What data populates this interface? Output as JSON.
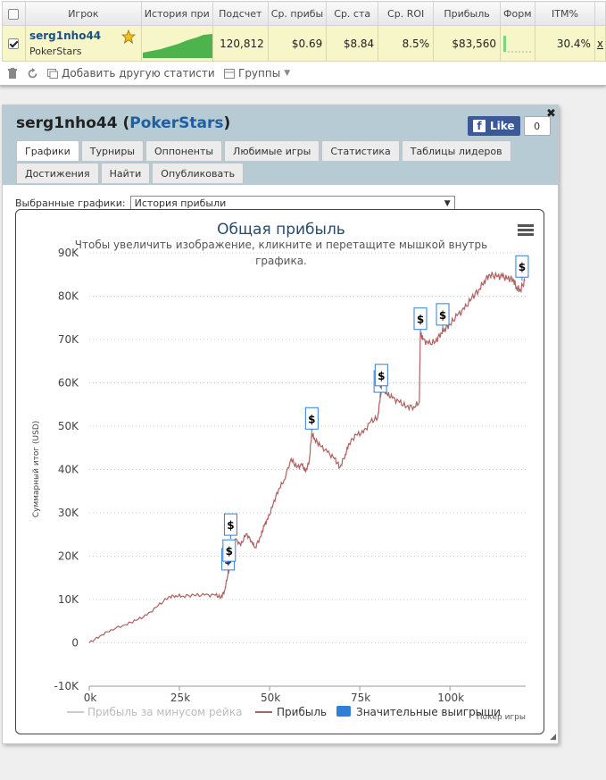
{
  "table": {
    "headers": [
      "Игрок",
      "История при",
      "Подсчет",
      "Ср. прибы",
      "Ср. ста",
      "Ср. ROI",
      "Прибыль",
      "Форм",
      "ITM%"
    ],
    "row": {
      "player": "serg1nho44",
      "site": "PokerStars",
      "count": "120,812",
      "avg_profit": "$0.69",
      "avg_stake": "$8.84",
      "avg_roi": "8.5%",
      "profit": "$83,560",
      "itm": "30.4%",
      "extra": "x"
    }
  },
  "toolbar": {
    "add_stats": "Добавить другую статистику",
    "groups": "Группы"
  },
  "player_panel": {
    "name": "serg1nho44",
    "site": "PokerStars",
    "like_label": "Like",
    "like_count": "0",
    "tabs_row1": [
      "Графики",
      "Турниры",
      "Оппоненты",
      "Любимые игры",
      "Статистика",
      "Таблицы лидеров"
    ],
    "tabs_row2": [
      "Достижения",
      "Найти",
      "Опубликовать"
    ],
    "selector_label": "Выбранные графики:",
    "selector_value": "История прибыли"
  },
  "chart_data": {
    "type": "line",
    "title": "Общая прибыль",
    "subtitle": "Чтобы увеличить изображение, кликните и перетащите мышкой внутрь графика.",
    "xlabel": "Покер игры",
    "ylabel": "Суммарный итог (USD)",
    "xlim": [
      0,
      121000
    ],
    "ylim": [
      -10000,
      90000
    ],
    "x_ticks": [
      0,
      25000,
      50000,
      75000,
      100000
    ],
    "x_tick_labels": [
      "0k",
      "25k",
      "50k",
      "75k",
      "100k"
    ],
    "y_ticks": [
      -10000,
      0,
      10000,
      20000,
      30000,
      40000,
      50000,
      60000,
      70000,
      80000,
      90000
    ],
    "y_tick_labels": [
      "-10K",
      "0",
      "10K",
      "20K",
      "30K",
      "40K",
      "50K",
      "60K",
      "70K",
      "80K",
      "90K"
    ],
    "grid": true,
    "legend_position": "bottom",
    "series": [
      {
        "name": "Прибыль",
        "color": "#b06060",
        "x": [
          0,
          3000,
          6000,
          10000,
          13000,
          16000,
          19000,
          22000,
          24000,
          26000,
          29000,
          32000,
          35000,
          36500,
          37500,
          38500,
          39500,
          40500,
          42000,
          43500,
          45000,
          46000,
          47500,
          48500,
          49500,
          51000,
          52500,
          54000,
          56000,
          57500,
          59000,
          60000,
          61000,
          61700,
          62500,
          64000,
          66000,
          68000,
          69500,
          71000,
          72000,
          74000,
          76000,
          78000,
          80000,
          80700,
          81300,
          82500,
          84000,
          86000,
          88000,
          90000,
          91500,
          91800,
          92500,
          94000,
          96000,
          97500,
          98500,
          100000,
          102000,
          104000,
          106000,
          108000,
          109500,
          111000,
          113000,
          114500,
          116000,
          117500,
          118500,
          119500,
          120812
        ],
        "y": [
          0,
          1600,
          3000,
          4200,
          5200,
          6400,
          8500,
          10600,
          10900,
          10800,
          11000,
          11000,
          11000,
          10500,
          12000,
          16000,
          19500,
          24000,
          22500,
          25200,
          23500,
          22000,
          24500,
          27000,
          28500,
          32000,
          35500,
          37500,
          42500,
          40500,
          41000,
          39500,
          42000,
          48500,
          47000,
          45500,
          44000,
          42500,
          40500,
          43500,
          46000,
          48000,
          48500,
          51000,
          52000,
          57000,
          59000,
          57500,
          56500,
          55500,
          54500,
          54500,
          55500,
          71500,
          70000,
          69000,
          69500,
          71500,
          72500,
          73500,
          75500,
          77000,
          79500,
          81500,
          83500,
          85000,
          84500,
          84500,
          84000,
          84000,
          82000,
          81500,
          83560
        ]
      },
      {
        "name": "Прибыль за минусом рейка",
        "color": "#cccccc",
        "x": [],
        "y": []
      }
    ],
    "big_wins": {
      "name": "Значительные выигрыши",
      "color": "#2f7ed8",
      "flag_text": "$",
      "points": [
        {
          "x": 38500,
          "y": 16000
        },
        {
          "x": 38800,
          "y": 18000
        },
        {
          "x": 39200,
          "y": 24000
        },
        {
          "x": 61700,
          "y": 48500
        },
        {
          "x": 80700,
          "y": 57000
        },
        {
          "x": 81000,
          "y": 58500
        },
        {
          "x": 91800,
          "y": 71500
        },
        {
          "x": 98000,
          "y": 72500
        },
        {
          "x": 120000,
          "y": 83560
        }
      ]
    }
  }
}
